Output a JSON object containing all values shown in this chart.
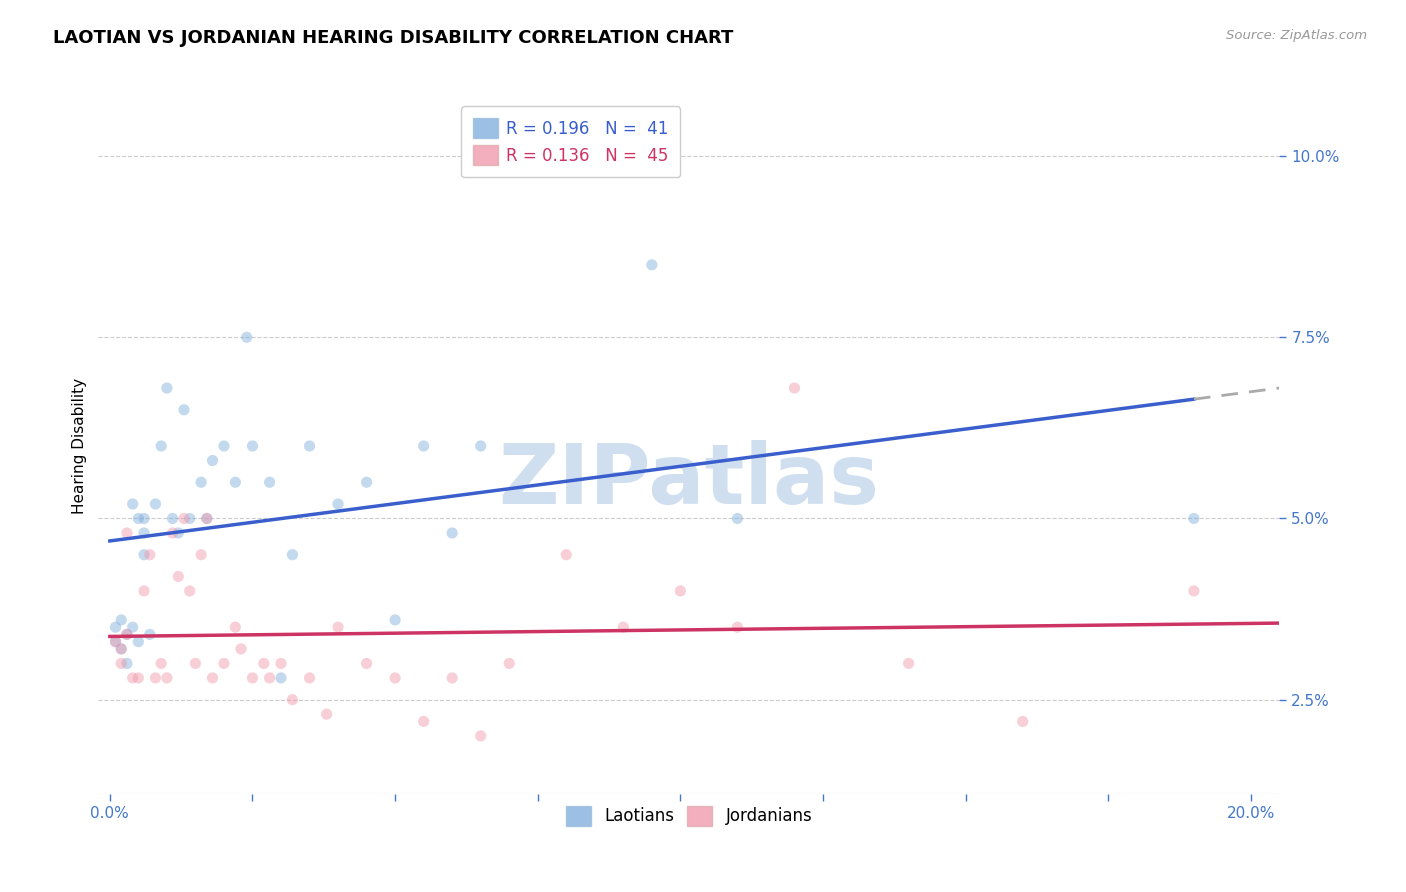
{
  "title": "LAOTIAN VS JORDANIAN HEARING DISABILITY CORRELATION CHART",
  "source": "Source: ZipAtlas.com",
  "ylabel": "Hearing Disability",
  "xlim": [
    -0.002,
    0.205
  ],
  "ylim": [
    0.012,
    0.108
  ],
  "xlabel_labeled": [
    0.0,
    0.2
  ],
  "xlabel_ticks": [
    0.0,
    0.025,
    0.05,
    0.075,
    0.1,
    0.125,
    0.15,
    0.175,
    0.2
  ],
  "ylabel_vals": [
    0.025,
    0.05,
    0.075,
    0.1
  ],
  "laotian_x": [
    0.001,
    0.001,
    0.002,
    0.002,
    0.003,
    0.003,
    0.004,
    0.004,
    0.005,
    0.005,
    0.006,
    0.006,
    0.006,
    0.007,
    0.008,
    0.009,
    0.01,
    0.011,
    0.012,
    0.013,
    0.014,
    0.016,
    0.017,
    0.018,
    0.02,
    0.022,
    0.024,
    0.025,
    0.028,
    0.03,
    0.032,
    0.035,
    0.04,
    0.045,
    0.05,
    0.055,
    0.06,
    0.065,
    0.095,
    0.11,
    0.19
  ],
  "laotian_y": [
    0.035,
    0.033,
    0.032,
    0.036,
    0.034,
    0.03,
    0.035,
    0.052,
    0.033,
    0.05,
    0.05,
    0.048,
    0.045,
    0.034,
    0.052,
    0.06,
    0.068,
    0.05,
    0.048,
    0.065,
    0.05,
    0.055,
    0.05,
    0.058,
    0.06,
    0.055,
    0.075,
    0.06,
    0.055,
    0.028,
    0.045,
    0.06,
    0.052,
    0.055,
    0.036,
    0.06,
    0.048,
    0.06,
    0.085,
    0.05,
    0.05
  ],
  "jordanian_x": [
    0.001,
    0.002,
    0.002,
    0.003,
    0.003,
    0.004,
    0.005,
    0.006,
    0.007,
    0.008,
    0.009,
    0.01,
    0.011,
    0.012,
    0.013,
    0.014,
    0.015,
    0.016,
    0.017,
    0.018,
    0.02,
    0.022,
    0.023,
    0.025,
    0.027,
    0.028,
    0.03,
    0.032,
    0.035,
    0.038,
    0.04,
    0.045,
    0.05,
    0.055,
    0.06,
    0.065,
    0.07,
    0.08,
    0.09,
    0.1,
    0.11,
    0.12,
    0.14,
    0.16,
    0.19
  ],
  "jordanian_y": [
    0.033,
    0.032,
    0.03,
    0.034,
    0.048,
    0.028,
    0.028,
    0.04,
    0.045,
    0.028,
    0.03,
    0.028,
    0.048,
    0.042,
    0.05,
    0.04,
    0.03,
    0.045,
    0.05,
    0.028,
    0.03,
    0.035,
    0.032,
    0.028,
    0.03,
    0.028,
    0.03,
    0.025,
    0.028,
    0.023,
    0.035,
    0.03,
    0.028,
    0.022,
    0.028,
    0.02,
    0.03,
    0.045,
    0.035,
    0.04,
    0.035,
    0.068,
    0.03,
    0.022,
    0.04
  ],
  "laotian_color": "#7aabdb",
  "jordanian_color": "#f095a8",
  "laotian_line_color": "#3a5fcd",
  "jordanian_line_color": "#cd3464",
  "ext_line_color": "#aaaaaa",
  "marker_size": 65,
  "marker_alpha": 0.45,
  "background_color": "#ffffff",
  "grid_color": "#cccccc",
  "legend1_entries": [
    "R = 0.196   N =  41",
    "R = 0.136   N =  45"
  ],
  "legend2_entries": [
    "Laotians",
    "Jordanians"
  ],
  "title_fontsize": 13,
  "tick_fontsize": 11,
  "legend_fontsize": 12,
  "tick_color": "#4477cc",
  "watermark_text": "ZIPatlas",
  "watermark_color": "#d0dff0",
  "watermark_fontsize": 60
}
